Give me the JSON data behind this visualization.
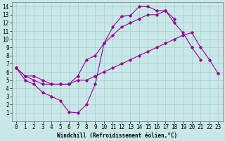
{
  "xlabel": "Windchill (Refroidissement éolien,°C)",
  "bg_color": "#c8e8e8",
  "line_color": "#990099",
  "grid_color": "#aacccc",
  "xlim": [
    -0.5,
    23.5
  ],
  "ylim": [
    0,
    14.5
  ],
  "xticks": [
    0,
    1,
    2,
    3,
    4,
    5,
    6,
    7,
    8,
    9,
    10,
    11,
    12,
    13,
    14,
    15,
    16,
    17,
    18,
    19,
    20,
    21,
    22,
    23
  ],
  "yticks": [
    1,
    2,
    3,
    4,
    5,
    6,
    7,
    8,
    9,
    10,
    11,
    12,
    13,
    14
  ],
  "line1_x": [
    0,
    1,
    2,
    3,
    4,
    5,
    6,
    7,
    8,
    9,
    10,
    11,
    12,
    13,
    14,
    15,
    16,
    17,
    18,
    19,
    20,
    21
  ],
  "line1_y": [
    6.5,
    5.0,
    4.5,
    3.5,
    3.0,
    2.5,
    1.1,
    1.0,
    2.0,
    4.5,
    9.5,
    11.5,
    12.8,
    12.9,
    14.0,
    14.0,
    13.5,
    13.5,
    12.0,
    10.8,
    9.0,
    7.5
  ],
  "line2_x": [
    0,
    1,
    2,
    3,
    4,
    5,
    6,
    7,
    8,
    9,
    10,
    11,
    12,
    13,
    14,
    15,
    16,
    17,
    18
  ],
  "line2_y": [
    6.5,
    5.5,
    5.5,
    5.0,
    4.5,
    4.5,
    4.5,
    5.5,
    7.5,
    8.0,
    9.5,
    10.5,
    11.5,
    12.0,
    12.5,
    13.0,
    13.0,
    13.5,
    12.5
  ],
  "line3_x": [
    0,
    1,
    2,
    3,
    4,
    5,
    6,
    7,
    8,
    9,
    10,
    11,
    12,
    13,
    14,
    15,
    16,
    17,
    18,
    19,
    20,
    21,
    22,
    23
  ],
  "line3_y": [
    6.5,
    5.5,
    5.0,
    4.5,
    4.5,
    4.5,
    4.5,
    5.0,
    5.0,
    5.5,
    6.0,
    6.5,
    7.0,
    7.5,
    8.0,
    8.5,
    9.0,
    9.5,
    10.0,
    10.5,
    10.8,
    9.0,
    7.5,
    5.8
  ],
  "tick_fontsize": 5.5,
  "xlabel_fontsize": 5.5,
  "marker_size": 1.8,
  "line_width": 0.8
}
